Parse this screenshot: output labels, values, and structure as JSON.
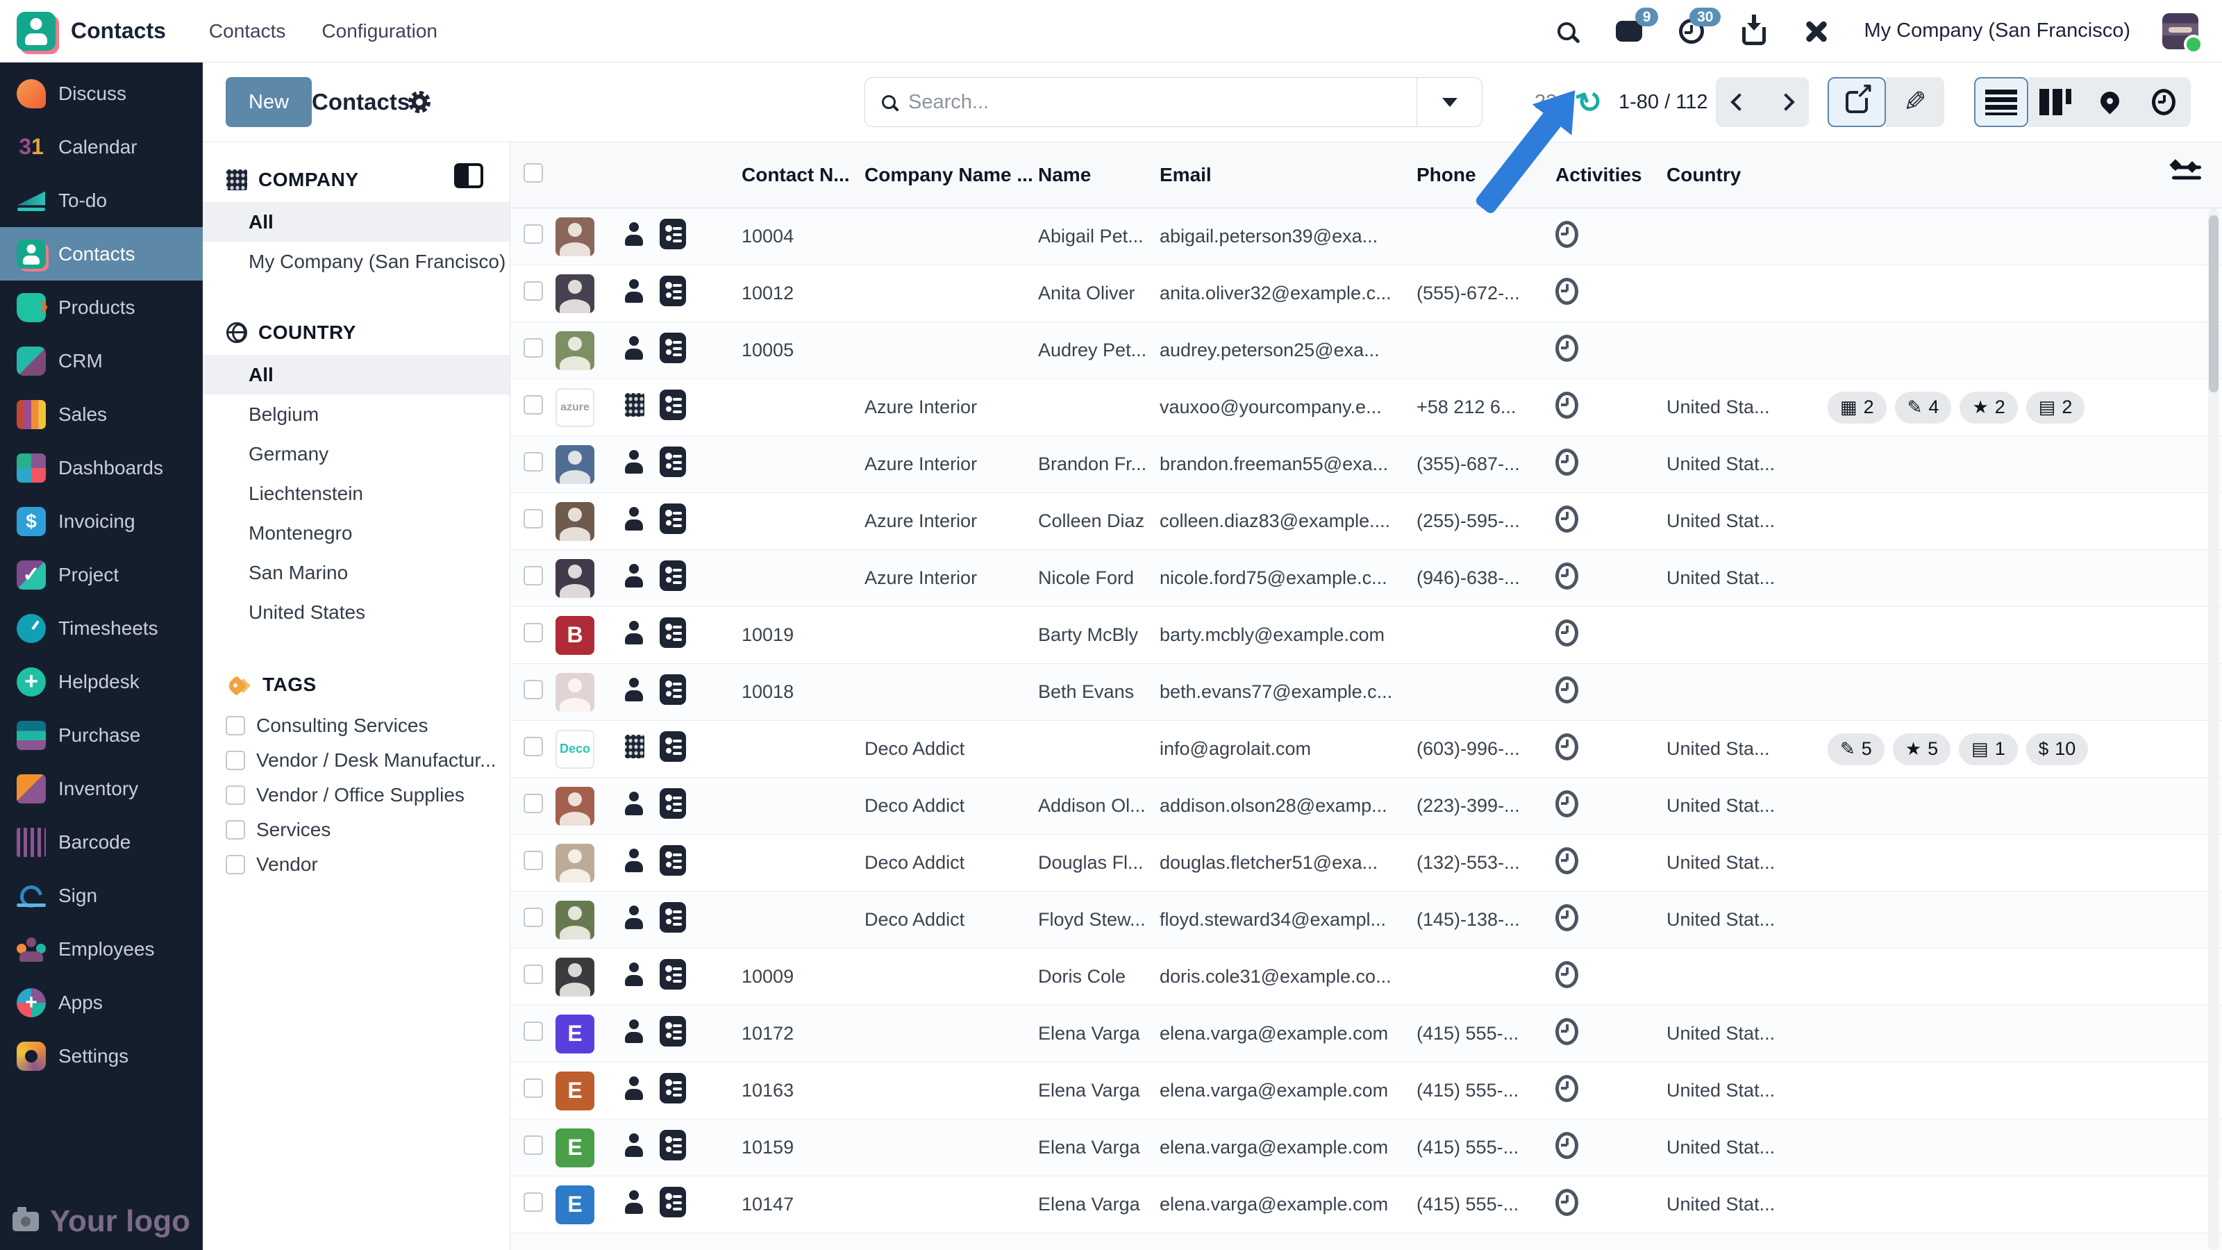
{
  "topbar": {
    "brand": "Contacts",
    "menu": [
      "Contacts",
      "Configuration"
    ],
    "chat_badge": "9",
    "activity_badge": "30",
    "company": "My Company (San Francisco)"
  },
  "control": {
    "new_label": "New",
    "title": "Contacts",
    "search_placeholder": "Search...",
    "refresh_timer": "23s",
    "pager": "1-80 / 112"
  },
  "sidebar": {
    "items": [
      "Discuss",
      "Calendar",
      "To-do",
      "Contacts",
      "Products",
      "CRM",
      "Sales",
      "Dashboards",
      "Invoicing",
      "Project",
      "Timesheets",
      "Helpdesk",
      "Purchase",
      "Inventory",
      "Barcode",
      "Sign",
      "Employees",
      "Apps",
      "Settings"
    ],
    "active_item": "Contacts",
    "logo_text": "Your logo"
  },
  "filters": {
    "company_title": "COMPANY",
    "company_items": [
      "All",
      "My Company (San Francisco)"
    ],
    "country_title": "COUNTRY",
    "country_items": [
      "All",
      "Belgium",
      "Germany",
      "Liechtenstein",
      "Montenegro",
      "San Marino",
      "United States"
    ],
    "tags_title": "TAGS",
    "tag_items": [
      "Consulting Services",
      "Vendor / Desk Manufactur...",
      "Vendor / Office Supplies",
      "Services",
      "Vendor"
    ]
  },
  "table": {
    "headers": {
      "contact": "Contact N...",
      "company": "Company Name ...",
      "name": "Name",
      "email": "Email",
      "phone": "Phone",
      "activities": "Activities",
      "country": "Country"
    },
    "rows": [
      {
        "av_bg": "#8a675a",
        "av_fg": "#fff",
        "is_photo": true,
        "is_person": true,
        "is_biz": false,
        "number": "10004",
        "company": "",
        "name": "Abigail Pet...",
        "email": "abigail.peterson39@exa...",
        "phone": "",
        "country": "",
        "badges": []
      },
      {
        "av_bg": "#474250",
        "av_fg": "#fff",
        "is_photo": true,
        "is_person": true,
        "is_biz": false,
        "number": "10012",
        "company": "",
        "name": "Anita Oliver",
        "email": "anita.oliver32@example.c...",
        "phone": "(555)-672-...",
        "country": "",
        "badges": []
      },
      {
        "av_bg": "#7d8f63",
        "av_fg": "#fff",
        "is_photo": true,
        "is_person": true,
        "is_biz": false,
        "number": "10005",
        "company": "",
        "name": "Audrey Pet...",
        "email": "audrey.peterson25@exa...",
        "phone": "",
        "country": "",
        "badges": []
      },
      {
        "av_bg": "#ffffff",
        "av_fg": "#9aa3ab",
        "av_label": "azure",
        "av_fs": "16px",
        "av_border": "2px solid #e4e7ea",
        "is_photo": false,
        "is_person": false,
        "is_biz": true,
        "number": "",
        "company": "Azure Interior",
        "name": "",
        "email": "vauxoo@yourcompany.e...",
        "phone": "+58 212 6...",
        "country": "United Sta...",
        "badges": [
          {
            "icon": "calendar-badge-icon",
            "g": "▦",
            "n": "2"
          },
          {
            "icon": "edit-badge-icon",
            "g": "✎",
            "n": "4"
          },
          {
            "icon": "star-badge-icon",
            "g": "★",
            "n": "2"
          },
          {
            "icon": "card-badge-icon",
            "g": "▤",
            "n": "2"
          }
        ]
      },
      {
        "av_bg": "#4f6d94",
        "av_fg": "#fff",
        "is_photo": true,
        "is_person": true,
        "is_biz": false,
        "number": "",
        "company": "Azure Interior",
        "name": "Brandon Fr...",
        "email": "brandon.freeman55@exa...",
        "phone": "(355)-687-...",
        "country": "United Stat...",
        "badges": []
      },
      {
        "av_bg": "#6e5b4c",
        "av_fg": "#fff",
        "is_photo": true,
        "is_person": true,
        "is_biz": false,
        "number": "",
        "company": "Azure Interior",
        "name": "Colleen Diaz",
        "email": "colleen.diaz83@example....",
        "phone": "(255)-595-...",
        "country": "United Stat...",
        "badges": []
      },
      {
        "av_bg": "#423a4a",
        "av_fg": "#fff",
        "is_photo": true,
        "is_person": true,
        "is_biz": false,
        "number": "",
        "company": "Azure Interior",
        "name": "Nicole Ford",
        "email": "nicole.ford75@example.c...",
        "phone": "(946)-638-...",
        "country": "United Stat...",
        "badges": []
      },
      {
        "av_bg": "#b02a37",
        "av_fg": "#fff",
        "av_label": "B",
        "av_fs": "32px",
        "is_photo": false,
        "is_person": true,
        "is_biz": false,
        "number": "10019",
        "company": "",
        "name": "Barty McBly",
        "email": "barty.mcbly@example.com",
        "phone": "",
        "country": "",
        "badges": []
      },
      {
        "av_bg": "#e2d4d4",
        "av_fg": "#fff",
        "is_photo": true,
        "is_person": true,
        "is_biz": false,
        "number": "10018",
        "company": "",
        "name": "Beth Evans",
        "email": "beth.evans77@example.c...",
        "phone": "",
        "country": "",
        "badges": []
      },
      {
        "av_bg": "#ffffff",
        "av_fg": "#2bc3ae",
        "av_label": "Deco",
        "av_fs": "18px",
        "av_border": "2px solid #e4e7ea",
        "is_photo": false,
        "is_person": false,
        "is_biz": true,
        "number": "",
        "company": "Deco Addict",
        "name": "",
        "email": "info@agrolait.com",
        "phone": "(603)-996-...",
        "country": "United Sta...",
        "badges": [
          {
            "icon": "edit-badge-icon",
            "g": "✎",
            "n": "5"
          },
          {
            "icon": "star-badge-icon",
            "g": "★",
            "n": "5"
          },
          {
            "icon": "card-badge-icon",
            "g": "▤",
            "n": "1"
          },
          {
            "icon": "money-badge-icon",
            "g": "$",
            "n": "10"
          }
        ]
      },
      {
        "av_bg": "#a3604e",
        "av_fg": "#fff",
        "is_photo": true,
        "is_person": true,
        "is_biz": false,
        "number": "",
        "company": "Deco Addict",
        "name": "Addison Ol...",
        "email": "addison.olson28@examp...",
        "phone": "(223)-399-...",
        "country": "United Stat...",
        "badges": []
      },
      {
        "av_bg": "#bcab97",
        "av_fg": "#fff",
        "is_photo": true,
        "is_person": true,
        "is_biz": false,
        "number": "",
        "company": "Deco Addict",
        "name": "Douglas Fl...",
        "email": "douglas.fletcher51@exa...",
        "phone": "(132)-553-...",
        "country": "United Stat...",
        "badges": []
      },
      {
        "av_bg": "#677a4f",
        "av_fg": "#fff",
        "is_photo": true,
        "is_person": true,
        "is_biz": false,
        "number": "",
        "company": "Deco Addict",
        "name": "Floyd Stew...",
        "email": "floyd.steward34@exampl...",
        "phone": "(145)-138-...",
        "country": "United Stat...",
        "badges": []
      },
      {
        "av_bg": "#3b3b3d",
        "av_fg": "#fff",
        "is_photo": true,
        "is_person": true,
        "is_biz": false,
        "number": "10009",
        "company": "",
        "name": "Doris Cole",
        "email": "doris.cole31@example.co...",
        "phone": "",
        "country": "",
        "badges": []
      },
      {
        "av_bg": "#5b3fdd",
        "av_fg": "#fff",
        "av_label": "E",
        "av_fs": "32px",
        "is_photo": false,
        "is_person": true,
        "is_biz": false,
        "number": "10172",
        "company": "",
        "name": "Elena Varga",
        "email": "elena.varga@example.com",
        "phone": "(415) 555-...",
        "country": "United Stat...",
        "badges": []
      },
      {
        "av_bg": "#bd5e2d",
        "av_fg": "#fff",
        "av_label": "E",
        "av_fs": "32px",
        "is_photo": false,
        "is_person": true,
        "is_biz": false,
        "number": "10163",
        "company": "",
        "name": "Elena Varga",
        "email": "elena.varga@example.com",
        "phone": "(415) 555-...",
        "country": "United Stat...",
        "badges": []
      },
      {
        "av_bg": "#4a9f49",
        "av_fg": "#fff",
        "av_label": "E",
        "av_fs": "32px",
        "is_photo": false,
        "is_person": true,
        "is_biz": false,
        "number": "10159",
        "company": "",
        "name": "Elena Varga",
        "email": "elena.varga@example.com",
        "phone": "(415) 555-...",
        "country": "United Stat...",
        "badges": []
      },
      {
        "av_bg": "#2d7ac8",
        "av_fg": "#fff",
        "av_label": "E",
        "av_fs": "32px",
        "is_photo": false,
        "is_person": true,
        "is_biz": false,
        "number": "10147",
        "company": "",
        "name": "Elena Varga",
        "email": "elena.varga@example.com",
        "phone": "(415) 555-...",
        "country": "United Stat...",
        "badges": []
      }
    ]
  }
}
